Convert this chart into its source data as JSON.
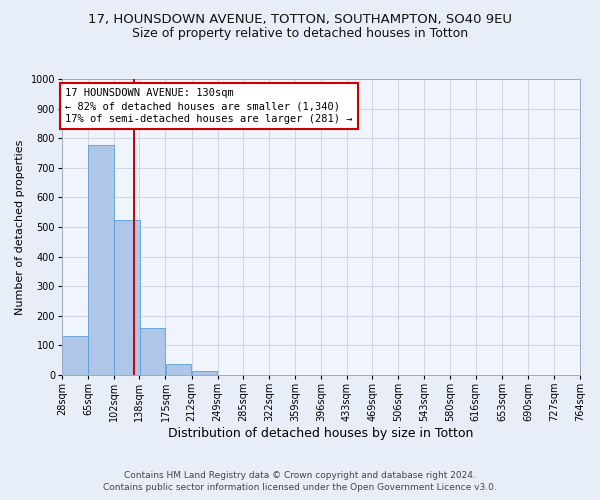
{
  "title_line1": "17, HOUNSDOWN AVENUE, TOTTON, SOUTHAMPTON, SO40 9EU",
  "title_line2": "Size of property relative to detached houses in Totton",
  "xlabel": "Distribution of detached houses by size in Totton",
  "ylabel": "Number of detached properties",
  "bar_edges": [
    28,
    65,
    102,
    138,
    175,
    212,
    249,
    285,
    322,
    359,
    396,
    433,
    469,
    506,
    543,
    580,
    616,
    653,
    690,
    727,
    764
  ],
  "bar_heights": [
    133,
    778,
    524,
    158,
    37,
    12,
    0,
    0,
    0,
    0,
    0,
    0,
    0,
    0,
    0,
    0,
    0,
    0,
    0,
    0
  ],
  "bar_color": "#aec6e8",
  "bar_edge_color": "#5a9fd4",
  "vline_x": 130,
  "vline_color": "#cc0000",
  "annotation_line1": "17 HOUNSDOWN AVENUE: 130sqm",
  "annotation_line2": "← 82% of detached houses are smaller (1,340)",
  "annotation_line3": "17% of semi-detached houses are larger (281) →",
  "box_edge_color": "#cc0000",
  "ylim": [
    0,
    1000
  ],
  "yticks": [
    0,
    100,
    200,
    300,
    400,
    500,
    600,
    700,
    800,
    900,
    1000
  ],
  "footer_line1": "Contains HM Land Registry data © Crown copyright and database right 2024.",
  "footer_line2": "Contains public sector information licensed under the Open Government Licence v3.0.",
  "bg_color": "#e8eef8",
  "plot_bg_color": "#f0f4fc",
  "grid_color": "#c8d0e0",
  "title1_fontsize": 9.5,
  "title2_fontsize": 9,
  "tick_fontsize": 7,
  "ylabel_fontsize": 8,
  "xlabel_fontsize": 9,
  "footer_fontsize": 6.5,
  "annotation_fontsize": 7.5
}
